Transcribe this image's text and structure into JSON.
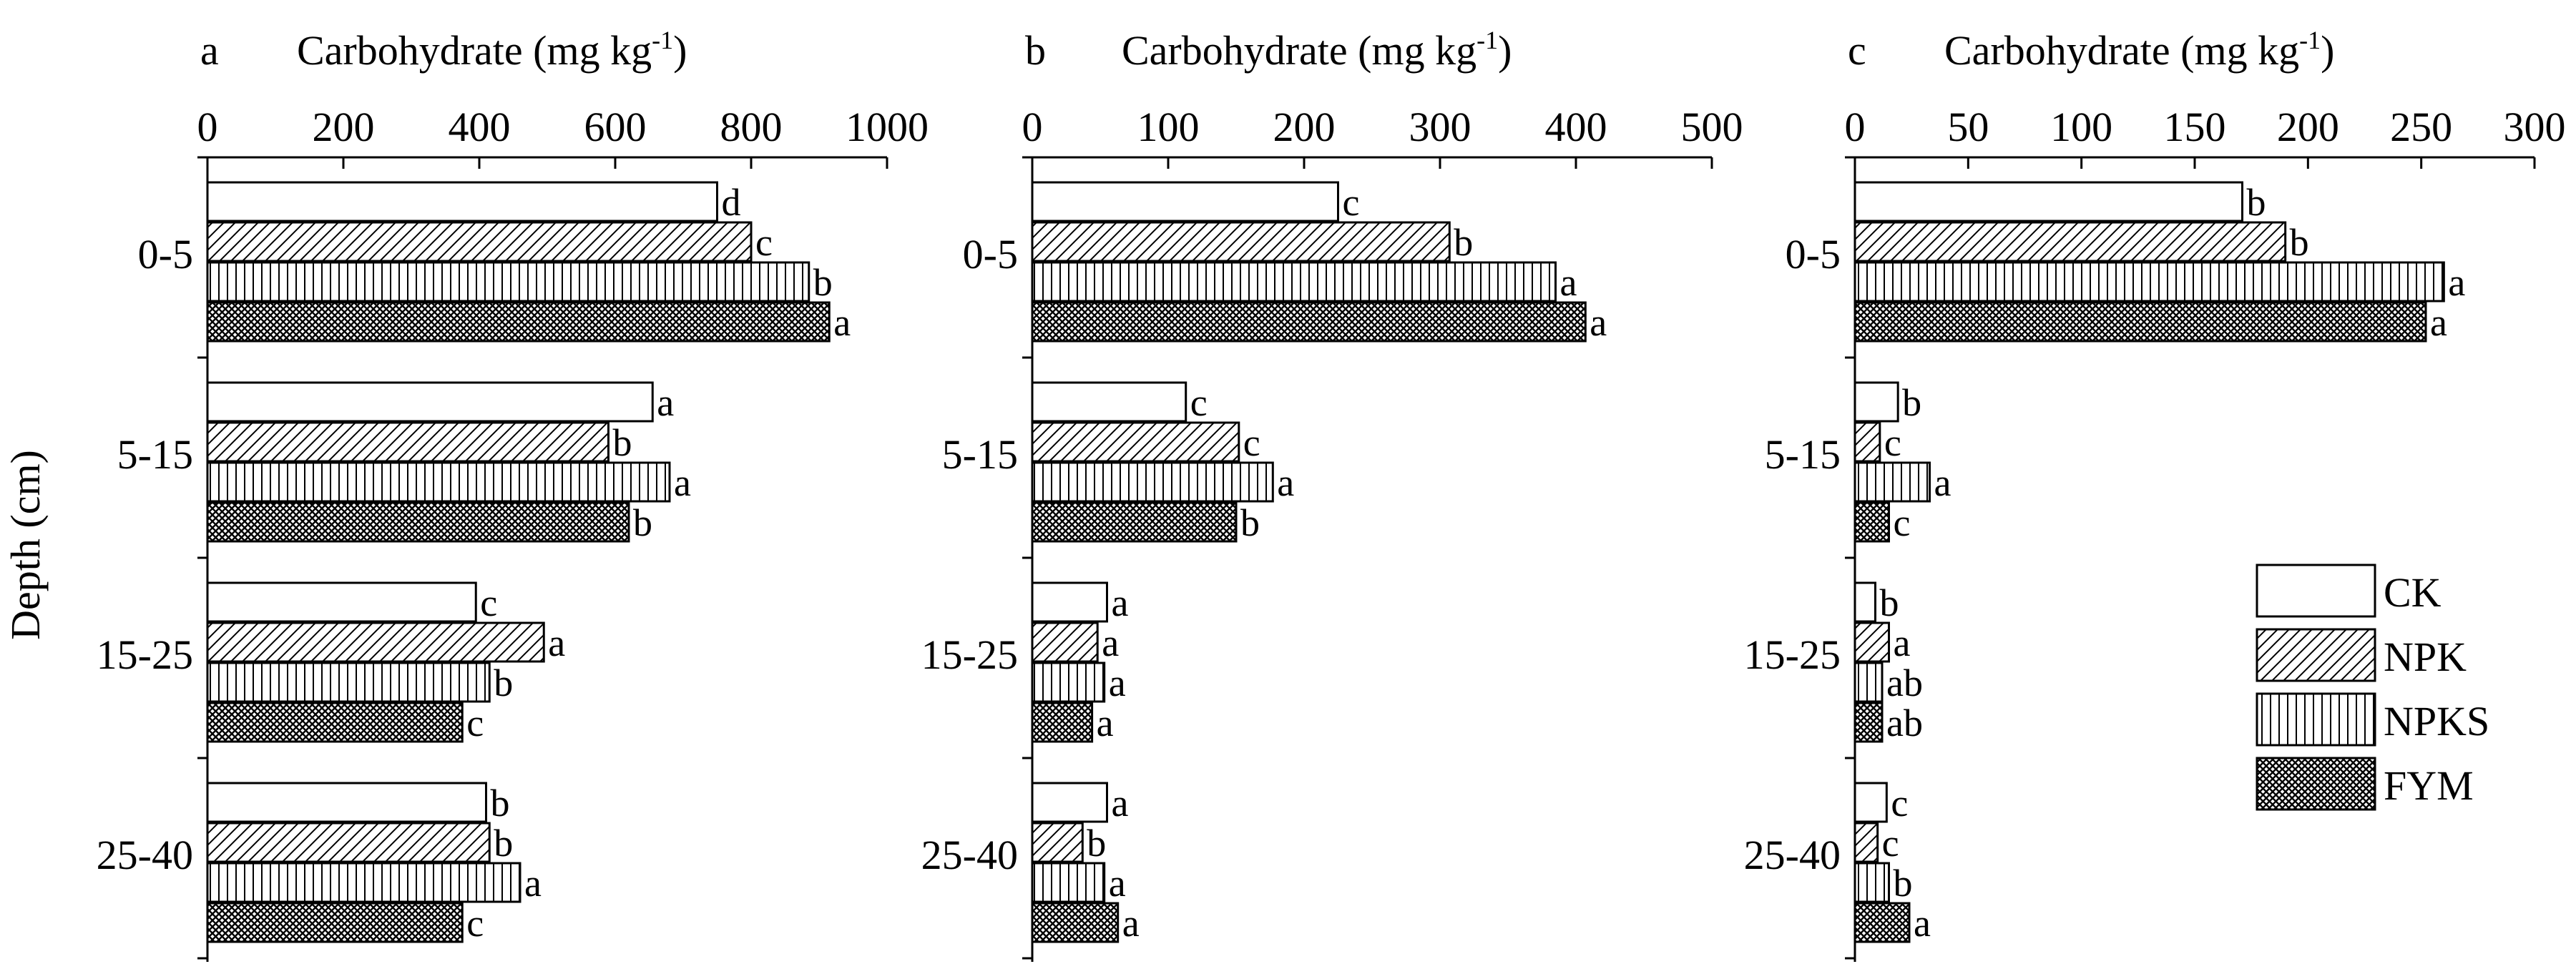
{
  "figure": {
    "ylabel": "Depth (cm)",
    "legend": {
      "placement": "lower-right of panel c",
      "entries": [
        {
          "label": "CK",
          "pattern": "blank"
        },
        {
          "label": "NPK",
          "pattern": "diagonal"
        },
        {
          "label": "NPKS",
          "pattern": "vertical"
        },
        {
          "label": "FYM",
          "pattern": "crosshatch"
        }
      ]
    }
  },
  "chart_data": [
    {
      "type": "bar",
      "orientation": "horizontal",
      "panel": "a",
      "xlabel_main": "Carbohydrate (mg kg",
      "xlabel_sup": "-1",
      "xlabel_end": ")",
      "xlim": [
        0,
        1000
      ],
      "xticks": [
        0,
        200,
        400,
        600,
        800,
        1000
      ],
      "categories": [
        "0-5",
        "5-15",
        "15-25",
        "25-40"
      ],
      "series": [
        {
          "name": "CK",
          "values": [
            750,
            655,
            395,
            410
          ],
          "labels": [
            "d",
            "a",
            "c",
            "b"
          ]
        },
        {
          "name": "NPK",
          "values": [
            800,
            590,
            495,
            415
          ],
          "labels": [
            "c",
            "b",
            "a",
            "b"
          ]
        },
        {
          "name": "NPKS",
          "values": [
            885,
            680,
            415,
            460
          ],
          "labels": [
            "b",
            "a",
            "b",
            "a"
          ]
        },
        {
          "name": "FYM",
          "values": [
            915,
            620,
            375,
            375
          ],
          "labels": [
            "a",
            "b",
            "c",
            "c"
          ]
        }
      ]
    },
    {
      "type": "bar",
      "orientation": "horizontal",
      "panel": "b",
      "xlabel_main": "Carbohydrate (mg kg",
      "xlabel_sup": "-1",
      "xlabel_end": ")",
      "xlim": [
        0,
        500
      ],
      "xticks": [
        0,
        100,
        200,
        300,
        400,
        500
      ],
      "categories": [
        "0-5",
        "5-15",
        "15-25",
        "25-40"
      ],
      "series": [
        {
          "name": "CK",
          "values": [
            225,
            113,
            55,
            55
          ],
          "labels": [
            "c",
            "c",
            "a",
            "a"
          ]
        },
        {
          "name": "NPK",
          "values": [
            307,
            152,
            48,
            37
          ],
          "labels": [
            "b",
            "c",
            "a",
            "b"
          ]
        },
        {
          "name": "NPKS",
          "values": [
            385,
            177,
            53,
            53
          ],
          "labels": [
            "a",
            "a",
            "a",
            "a"
          ]
        },
        {
          "name": "FYM",
          "values": [
            407,
            150,
            44,
            63
          ],
          "labels": [
            "a",
            "b",
            "a",
            "a"
          ]
        }
      ]
    },
    {
      "type": "bar",
      "orientation": "horizontal",
      "panel": "c",
      "xlabel_main": "Carbohydrate (mg kg",
      "xlabel_sup": "-1",
      "xlabel_end": ")",
      "xlim": [
        0,
        300
      ],
      "xticks": [
        0,
        50,
        100,
        150,
        200,
        250,
        300
      ],
      "categories": [
        "0-5",
        "5-15",
        "15-25",
        "25-40"
      ],
      "series": [
        {
          "name": "CK",
          "values": [
            171,
            19,
            9,
            14
          ],
          "labels": [
            "b",
            "b",
            "b",
            "c"
          ]
        },
        {
          "name": "NPK",
          "values": [
            190,
            11,
            15,
            10
          ],
          "labels": [
            "b",
            "c",
            "a",
            "c"
          ]
        },
        {
          "name": "NPKS",
          "values": [
            260,
            33,
            12,
            15
          ],
          "labels": [
            "a",
            "a",
            "ab",
            "b"
          ]
        },
        {
          "name": "FYM",
          "values": [
            252,
            15,
            12,
            24
          ],
          "labels": [
            "a",
            "c",
            "ab",
            "a"
          ]
        }
      ]
    }
  ]
}
